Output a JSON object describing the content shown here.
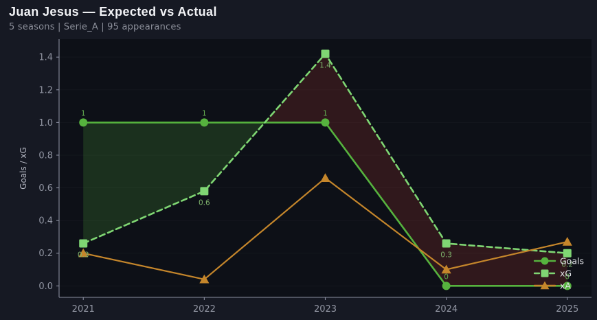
{
  "header": {
    "title": "Juan Jesus — Expected vs Actual",
    "subtitle": "5 seasons | Serie_A | 95 appearances"
  },
  "colors": {
    "page_bg": "#161923",
    "plot_bg": "#0d1017",
    "axis": "#8b8fa0",
    "tick_text": "#9296a3",
    "fill_goals_over_xg": "rgba(86,179,62,0.20)",
    "fill_xg_over_goals": "rgba(190,60,50,0.20)"
  },
  "chart_data": {
    "type": "line",
    "title": "Juan Jesus — Expected vs Actual",
    "xlabel": "",
    "ylabel": "Goals / xG",
    "x": [
      2021,
      2022,
      2023,
      2024,
      2025
    ],
    "xlim": [
      2020.8,
      2025.2
    ],
    "ylim": [
      -0.07,
      1.51
    ],
    "yticks": [
      0.0,
      0.2,
      0.4,
      0.6,
      0.8,
      1.0,
      1.2,
      1.4
    ],
    "grid": false,
    "series": [
      {
        "name": "Goals",
        "values": [
          1,
          1,
          1,
          0,
          0
        ],
        "color": "#56b33e",
        "marker": "circle",
        "style": "solid",
        "labels": [
          "1",
          "1",
          "1",
          "0",
          "0"
        ],
        "label_position": "above",
        "label_color": "#62aa50"
      },
      {
        "name": "xG",
        "values": [
          0.26,
          0.58,
          1.42,
          0.26,
          0.2
        ],
        "color": "#7fd673",
        "marker": "square",
        "style": "dashed",
        "labels": [
          "0.3",
          "0.6",
          "1.4",
          "0.3",
          "0.2"
        ],
        "label_position": "below",
        "label_color": "#7fb46d"
      },
      {
        "name": "xA",
        "values": [
          0.2,
          0.04,
          0.66,
          0.1,
          0.27
        ],
        "color": "#c5862b",
        "marker": "triangle",
        "style": "solid",
        "labels": null,
        "label_position": "none",
        "label_color": "#c5862b"
      }
    ],
    "fill_between": {
      "series_a": "Goals",
      "series_b": "xG",
      "a_over_b_color": "rgba(86,179,62,0.20)",
      "b_over_a_color": "rgba(190,60,50,0.20)"
    },
    "legend": {
      "position": "lower right",
      "entries": [
        "Goals",
        "xG",
        "xA"
      ]
    }
  }
}
